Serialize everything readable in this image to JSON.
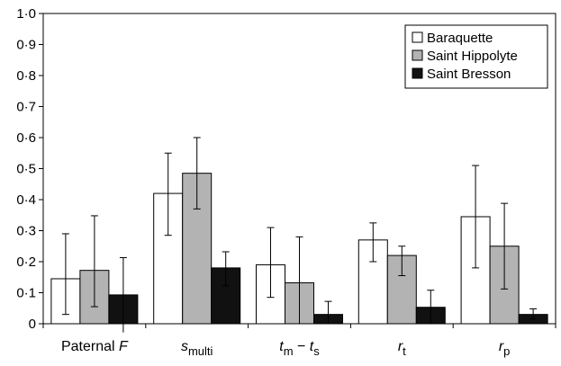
{
  "chart_data": {
    "type": "bar",
    "categories": [
      {
        "main": "Paternal ",
        "italic": "F",
        "sub": ""
      },
      {
        "main": "",
        "italic": "s",
        "sub": "multi"
      },
      {
        "main": "",
        "italic": "t",
        "sub": "m",
        "tail_italic": "t",
        "tail_sub": "s",
        "op": " − "
      },
      {
        "main": "",
        "italic": "r",
        "sub": "t"
      },
      {
        "main": "",
        "italic": "r",
        "sub": "p"
      }
    ],
    "series": [
      {
        "name": "Baraquette",
        "color": "#ffffff",
        "values": [
          0.145,
          0.42,
          0.19,
          0.27,
          0.345
        ],
        "err_low": [
          0.03,
          0.285,
          0.085,
          0.2,
          0.18
        ],
        "err_high": [
          0.29,
          0.55,
          0.31,
          0.325,
          0.51
        ]
      },
      {
        "name": "Saint Hippolyte",
        "color": "#b3b3b3",
        "values": [
          0.172,
          0.485,
          0.132,
          0.22,
          0.25
        ],
        "err_low": [
          0.055,
          0.37,
          0.0,
          0.155,
          0.112
        ],
        "err_high": [
          0.348,
          0.6,
          0.28,
          0.25,
          0.388
        ]
      },
      {
        "name": "Saint Bresson",
        "color": "#111111",
        "values": [
          0.093,
          0.18,
          0.03,
          0.053,
          0.03
        ],
        "err_low": [
          -0.028,
          0.122,
          0.0,
          0.0,
          0.015
        ],
        "err_high": [
          0.213,
          0.232,
          0.072,
          0.108,
          0.048
        ]
      }
    ],
    "ylim": [
      0,
      1.0
    ],
    "yticks": [
      "0",
      "0·1",
      "0·2",
      "0·3",
      "0·4",
      "0·5",
      "0·6",
      "0·7",
      "0·8",
      "0·9",
      "1·0"
    ],
    "title": "",
    "xlabel": "",
    "ylabel": "",
    "legend_position": "top-right",
    "grid": false
  }
}
